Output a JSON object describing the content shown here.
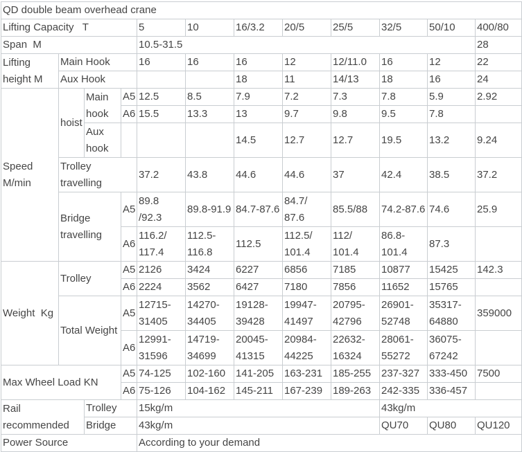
{
  "colors": {
    "border": "#c9cdd1",
    "text": "#454545"
  },
  "table": {
    "title": "QD double beam overhead crane",
    "rows": [
      {
        "h": "s",
        "cells": [
          {
            "t": "QD double beam overhead crane",
            "cs": 12,
            "name": "table-title",
            "align": "center"
          }
        ]
      },
      {
        "h": "s",
        "cells": [
          {
            "t": "Lifting Capacity   T",
            "cs": 4,
            "name": "label-lifting-capacity"
          },
          {
            "t": "5"
          },
          {
            "t": "10"
          },
          {
            "t": "16/3.2"
          },
          {
            "t": "20/5"
          },
          {
            "t": "25/5"
          },
          {
            "t": "32/5"
          },
          {
            "t": "50/10"
          },
          {
            "t": "400/80"
          }
        ]
      },
      {
        "h": "s",
        "cells": [
          {
            "t": "Span  M",
            "cs": 4,
            "name": "label-span"
          },
          {
            "t": "10.5-31.5",
            "cs": 7
          },
          {
            "t": "28"
          }
        ]
      },
      {
        "h": "s",
        "cells": [
          {
            "t": "Lifting\nheight M",
            "rs": 2,
            "name": "label-lifting-height"
          },
          {
            "t": "Main Hook",
            "cs": 3,
            "name": "label-main-hook"
          },
          {
            "t": "16"
          },
          {
            "t": "16"
          },
          {
            "t": "16"
          },
          {
            "t": "12"
          },
          {
            "t": "12/11.0"
          },
          {
            "t": "16"
          },
          {
            "t": "12"
          },
          {
            "t": "22"
          }
        ]
      },
      {
        "h": "s",
        "cells": [
          {
            "t": "Aux Hook",
            "cs": 3,
            "name": "label-aux-hook"
          },
          {
            "t": ""
          },
          {
            "t": ""
          },
          {
            "t": "18"
          },
          {
            "t": "11"
          },
          {
            "t": "14/13"
          },
          {
            "t": "18"
          },
          {
            "t": "16"
          },
          {
            "t": "24"
          }
        ]
      },
      {
        "h": "s",
        "cells": [
          {
            "t": "Speed\nM/min",
            "rs": 6,
            "name": "label-speed"
          },
          {
            "t": "hoist",
            "rs": 3,
            "name": "label-hoist"
          },
          {
            "t": "Main\nhook",
            "rs": 2,
            "name": "label-hoist-main-hook"
          },
          {
            "t": "A5",
            "name": "label-duty-a5"
          },
          {
            "t": "12.5"
          },
          {
            "t": "8.5"
          },
          {
            "t": "7.9"
          },
          {
            "t": "7.2"
          },
          {
            "t": "7.3"
          },
          {
            "t": "7.8"
          },
          {
            "t": "5.9"
          },
          {
            "t": "2.92"
          }
        ]
      },
      {
        "h": "s",
        "cells": [
          {
            "t": "A6",
            "name": "label-duty-a6"
          },
          {
            "t": "15.5"
          },
          {
            "t": "13.3"
          },
          {
            "t": "13"
          },
          {
            "t": "9.7"
          },
          {
            "t": "9.8"
          },
          {
            "t": "9.5"
          },
          {
            "t": "7.8"
          },
          {
            "t": ""
          }
        ]
      },
      {
        "h": "d",
        "cells": [
          {
            "t": "Aux\nhook",
            "name": "label-hoist-aux-hook"
          },
          {
            "t": ""
          },
          {
            "t": ""
          },
          {
            "t": ""
          },
          {
            "t": "14.5"
          },
          {
            "t": "12.7"
          },
          {
            "t": "12.7"
          },
          {
            "t": "19.5"
          },
          {
            "t": "13.2"
          },
          {
            "t": "9.24"
          }
        ]
      },
      {
        "h": "d",
        "cells": [
          {
            "t": "Trolley\ntravelling",
            "cs": 3,
            "name": "label-trolley-travelling"
          },
          {
            "t": "37.2"
          },
          {
            "t": "43.8"
          },
          {
            "t": "44.6"
          },
          {
            "t": "44.6"
          },
          {
            "t": "37"
          },
          {
            "t": "42.4"
          },
          {
            "t": "38.5"
          },
          {
            "t": "37.2"
          }
        ]
      },
      {
        "h": "d",
        "cells": [
          {
            "t": "Bridge\ntravelling",
            "cs": 2,
            "rs": 2,
            "name": "label-bridge-travelling"
          },
          {
            "t": "A5",
            "name": "label-duty-a5"
          },
          {
            "t": "89.8\n/92.3"
          },
          {
            "t": "89.8-91.9"
          },
          {
            "t": "84.7-87.6"
          },
          {
            "t": "84.7/\n87.6"
          },
          {
            "t": "85.5/88"
          },
          {
            "t": "74.2-87.6"
          },
          {
            "t": "74.6"
          },
          {
            "t": "25.9"
          }
        ]
      },
      {
        "h": "d",
        "cells": [
          {
            "t": "A6",
            "name": "label-duty-a6"
          },
          {
            "t": "116.2/\n117.4"
          },
          {
            "t": "112.5-\n116.8"
          },
          {
            "t": "112.5"
          },
          {
            "t": "112.5/\n101.4"
          },
          {
            "t": "112/\n101.4"
          },
          {
            "t": "86.8-\n101.4"
          },
          {
            "t": "87.3"
          },
          {
            "t": ""
          }
        ]
      },
      {
        "h": "s",
        "cells": [
          {
            "t": "Weight  Kg",
            "rs": 4,
            "name": "label-weight"
          },
          {
            "t": "Trolley",
            "cs": 2,
            "rs": 2,
            "name": "label-weight-trolley"
          },
          {
            "t": "A5",
            "name": "label-duty-a5"
          },
          {
            "t": "2126"
          },
          {
            "t": "3424"
          },
          {
            "t": "6227"
          },
          {
            "t": "6856"
          },
          {
            "t": "7185"
          },
          {
            "t": "10877"
          },
          {
            "t": "15425"
          },
          {
            "t": "142.3"
          }
        ]
      },
      {
        "h": "s",
        "cells": [
          {
            "t": "A6",
            "name": "label-duty-a6"
          },
          {
            "t": "2224"
          },
          {
            "t": "3562"
          },
          {
            "t": "6427"
          },
          {
            "t": "7180"
          },
          {
            "t": "7856"
          },
          {
            "t": "11652"
          },
          {
            "t": "15765"
          },
          {
            "t": ""
          }
        ]
      },
      {
        "h": "d",
        "cells": [
          {
            "t": "Total Weight",
            "cs": 2,
            "rs": 2,
            "name": "label-total-weight"
          },
          {
            "t": "A5",
            "name": "label-duty-a5"
          },
          {
            "t": "12715-\n31405"
          },
          {
            "t": "14270-\n34405"
          },
          {
            "t": "19128-\n39428"
          },
          {
            "t": "19947-\n41497"
          },
          {
            "t": "20795-\n42796"
          },
          {
            "t": "26901-\n52748"
          },
          {
            "t": "35317-\n64880"
          },
          {
            "t": "359000"
          }
        ]
      },
      {
        "h": "d",
        "cells": [
          {
            "t": "A6",
            "name": "label-duty-a6"
          },
          {
            "t": "12991-\n31596"
          },
          {
            "t": "14719-\n34699"
          },
          {
            "t": "20045-\n41315"
          },
          {
            "t": "20984-\n44225"
          },
          {
            "t": "22632-\n16324"
          },
          {
            "t": "28061-\n55272"
          },
          {
            "t": "36075-\n67242"
          },
          {
            "t": ""
          }
        ]
      },
      {
        "h": "s",
        "cells": [
          {
            "t": "Max Wheel Load KN",
            "cs": 3,
            "rs": 2,
            "name": "label-max-wheel-load"
          },
          {
            "t": "A5",
            "name": "label-duty-a5"
          },
          {
            "t": "74-125"
          },
          {
            "t": "102-160"
          },
          {
            "t": "141-205"
          },
          {
            "t": "163-231"
          },
          {
            "t": "185-255"
          },
          {
            "t": "237-327"
          },
          {
            "t": "333-450"
          },
          {
            "t": "7500"
          }
        ]
      },
      {
        "h": "s",
        "cells": [
          {
            "t": "A6",
            "name": "label-duty-a6"
          },
          {
            "t": "75-126"
          },
          {
            "t": "104-162"
          },
          {
            "t": "145-211"
          },
          {
            "t": "167-239"
          },
          {
            "t": "189-263"
          },
          {
            "t": "242-335"
          },
          {
            "t": "336-457"
          },
          {
            "t": ""
          }
        ]
      },
      {
        "h": "s",
        "cells": [
          {
            "t": "Rail\nrecommended",
            "cs": 2,
            "rs": 2,
            "name": "label-rail-recommended"
          },
          {
            "t": "Trolley",
            "cs": 2,
            "name": "label-rail-trolley"
          },
          {
            "t": "15kg/m",
            "cs": 5
          },
          {
            "t": "43kg/m",
            "cs": 3
          }
        ]
      },
      {
        "h": "s",
        "cells": [
          {
            "t": "Bridge",
            "cs": 2,
            "name": "label-rail-bridge"
          },
          {
            "t": "43kg/m",
            "cs": 5
          },
          {
            "t": "QU70"
          },
          {
            "t": "QU80"
          },
          {
            "t": "QU120"
          }
        ]
      },
      {
        "h": "s",
        "cells": [
          {
            "t": "Power Source",
            "cs": 4,
            "name": "label-power-source"
          },
          {
            "t": "According to your demand",
            "cs": 8
          }
        ]
      }
    ]
  }
}
